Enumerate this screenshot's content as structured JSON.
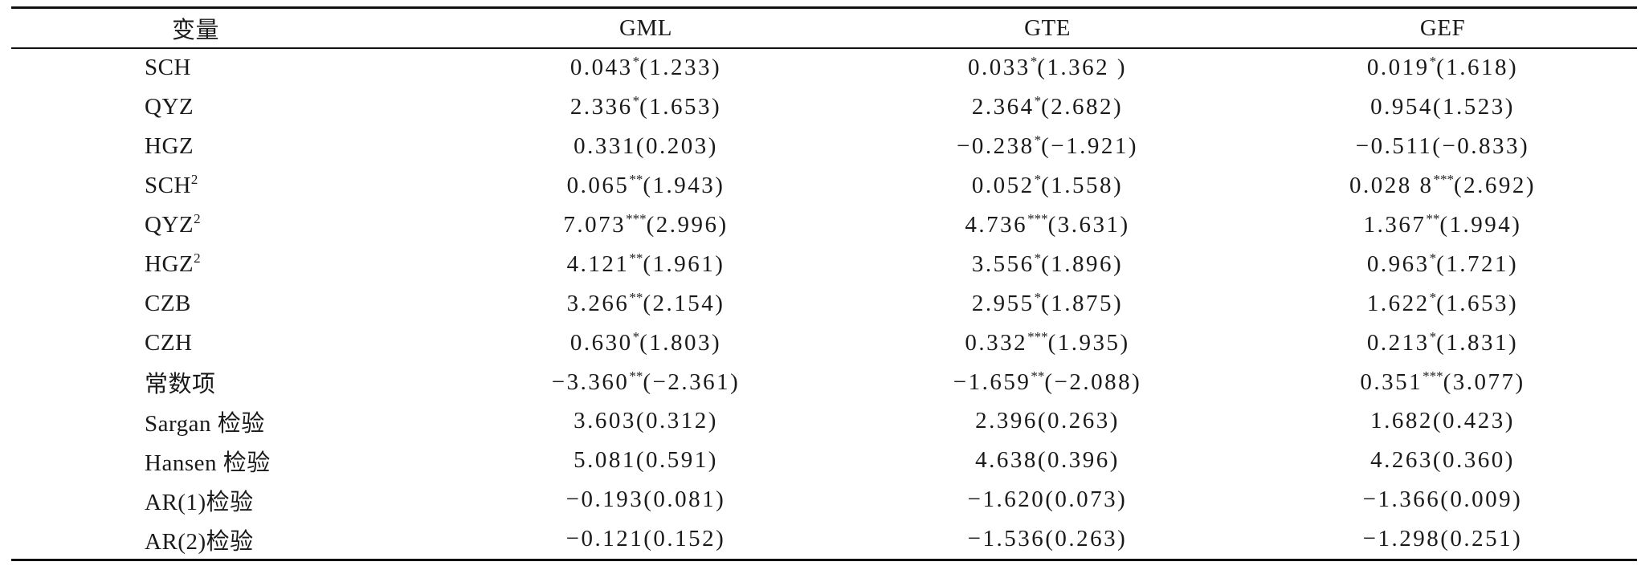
{
  "table": {
    "headers": [
      "变量",
      "GML",
      "GTE",
      "GEF"
    ],
    "rows": [
      {
        "label": "SCH",
        "sup": "",
        "cells": [
          {
            "v": "0.043",
            "s": "*",
            "p": "(1.233)"
          },
          {
            "v": "0.033",
            "s": "*",
            "p": "(1.362 )"
          },
          {
            "v": "0.019",
            "s": "*",
            "p": "(1.618)"
          }
        ]
      },
      {
        "label": "QYZ",
        "sup": "",
        "cells": [
          {
            "v": "2.336",
            "s": "*",
            "p": "(1.653)"
          },
          {
            "v": "2.364",
            "s": "*",
            "p": "(2.682)"
          },
          {
            "v": "0.954",
            "s": "",
            "p": "(1.523)"
          }
        ]
      },
      {
        "label": "HGZ",
        "sup": "",
        "cells": [
          {
            "v": "0.331",
            "s": "",
            "p": "(0.203)"
          },
          {
            "v": "−0.238",
            "s": "*",
            "p": "(−1.921)"
          },
          {
            "v": "−0.511",
            "s": "",
            "p": "(−0.833)"
          }
        ]
      },
      {
        "label": "SCH",
        "sup": "2",
        "cells": [
          {
            "v": "0.065",
            "s": "**",
            "p": "(1.943)"
          },
          {
            "v": "0.052",
            "s": "*",
            "p": "(1.558)"
          },
          {
            "v": "0.028 8",
            "s": "***",
            "p": "(2.692)"
          }
        ]
      },
      {
        "label": "QYZ",
        "sup": "2",
        "cells": [
          {
            "v": "7.073",
            "s": "***",
            "p": "(2.996)"
          },
          {
            "v": "4.736",
            "s": "***",
            "p": "(3.631)"
          },
          {
            "v": "1.367",
            "s": "**",
            "p": "(1.994)"
          }
        ]
      },
      {
        "label": "HGZ",
        "sup": "2",
        "cells": [
          {
            "v": "4.121",
            "s": "**",
            "p": "(1.961)"
          },
          {
            "v": "3.556",
            "s": "*",
            "p": "(1.896)"
          },
          {
            "v": "0.963",
            "s": "*",
            "p": "(1.721)"
          }
        ]
      },
      {
        "label": "CZB",
        "sup": "",
        "cells": [
          {
            "v": "3.266",
            "s": "**",
            "p": "(2.154)"
          },
          {
            "v": "2.955",
            "s": "*",
            "p": "(1.875)"
          },
          {
            "v": "1.622",
            "s": "*",
            "p": "(1.653)"
          }
        ]
      },
      {
        "label": "CZH",
        "sup": "",
        "cells": [
          {
            "v": "0.630",
            "s": "*",
            "p": "(1.803)"
          },
          {
            "v": "0.332",
            "s": "***",
            "p": "(1.935)"
          },
          {
            "v": "0.213",
            "s": "*",
            "p": "(1.831)"
          }
        ]
      },
      {
        "label": "常数项",
        "sup": "",
        "cells": [
          {
            "v": "−3.360",
            "s": "**",
            "p": "(−2.361)"
          },
          {
            "v": "−1.659",
            "s": "**",
            "p": "(−2.088)"
          },
          {
            "v": "0.351",
            "s": "***",
            "p": "(3.077)"
          }
        ]
      },
      {
        "label": "Sargan 检验",
        "sup": "",
        "cells": [
          {
            "v": "3.603",
            "s": "",
            "p": "(0.312)"
          },
          {
            "v": "2.396",
            "s": "",
            "p": "(0.263)"
          },
          {
            "v": "1.682",
            "s": "",
            "p": "(0.423)"
          }
        ]
      },
      {
        "label": "Hansen 检验",
        "sup": "",
        "cells": [
          {
            "v": "5.081",
            "s": "",
            "p": "(0.591)"
          },
          {
            "v": "4.638",
            "s": "",
            "p": "(0.396)"
          },
          {
            "v": "4.263",
            "s": "",
            "p": "(0.360)"
          }
        ]
      },
      {
        "label": "AR(1)检验",
        "sup": "",
        "cells": [
          {
            "v": "−0.193",
            "s": "",
            "p": "(0.081)"
          },
          {
            "v": "−1.620",
            "s": "",
            "p": "(0.073)"
          },
          {
            "v": "−1.366",
            "s": "",
            "p": "(0.009)"
          }
        ]
      },
      {
        "label": "AR(2)检验",
        "sup": "",
        "cells": [
          {
            "v": "−0.121",
            "s": "",
            "p": "(0.152)"
          },
          {
            "v": "−1.536",
            "s": "",
            "p": "(0.263)"
          },
          {
            "v": "−1.298",
            "s": "",
            "p": "(0.251)"
          }
        ]
      }
    ]
  }
}
